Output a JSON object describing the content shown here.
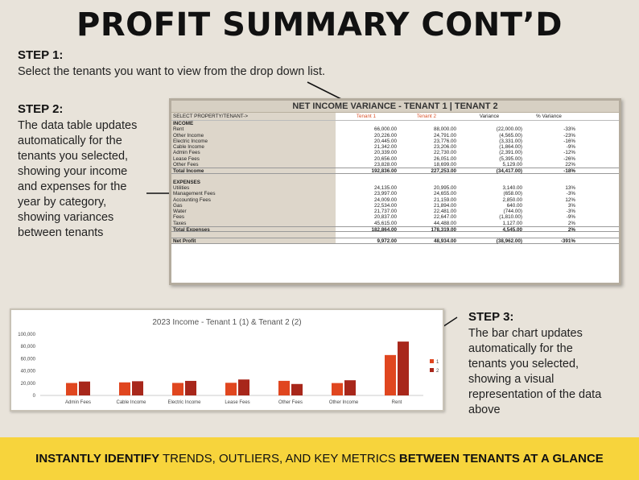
{
  "title": "PROFIT SUMMARY CONT’D",
  "step1": {
    "heading": "STEP 1:",
    "text": "Select the tenants you want to view from the drop down list."
  },
  "step2": {
    "heading": "STEP 2:",
    "lines": [
      "The data table updates",
      "automatically for the",
      "tenants you selected,",
      "showing your income",
      "and expenses for the",
      "year by category,",
      "showing variances",
      "between tenants"
    ]
  },
  "step3": {
    "heading": "STEP 3:",
    "lines": [
      "The bar chart updates",
      "automatically for the",
      "tenants you selected,",
      "showing a visual",
      "representation of the data",
      "above"
    ]
  },
  "table": {
    "title": "NET INCOME VARIANCE - TENANT 1 | TENANT 2",
    "header": [
      "SELECT PROPERTY/TENANT->",
      "Tenant 1",
      "Tenant 2",
      "Variance",
      "% Variance"
    ],
    "rows": [
      {
        "type": "section",
        "cells": [
          "INCOME",
          "",
          "",
          "",
          ""
        ]
      },
      {
        "type": "data",
        "cells": [
          "Rent",
          "66,000.00",
          "88,000.00",
          "(22,000.00)",
          "-33%"
        ]
      },
      {
        "type": "data",
        "cells": [
          "Other Income",
          "20,226.00",
          "24,791.00",
          "(4,565.00)",
          "-23%"
        ]
      },
      {
        "type": "data",
        "cells": [
          "Electric Income",
          "20,445.00",
          "23,776.00",
          "(3,331.00)",
          "-16%"
        ]
      },
      {
        "type": "data",
        "cells": [
          "Cable Income",
          "21,342.00",
          "23,206.00",
          "(1,864.00)",
          "-9%"
        ]
      },
      {
        "type": "data",
        "cells": [
          "Admin Fees",
          "20,339.00",
          "22,730.00",
          "(2,391.00)",
          "-12%"
        ]
      },
      {
        "type": "data",
        "cells": [
          "Lease Fees",
          "20,656.00",
          "26,051.00",
          "(5,395.00)",
          "-26%"
        ]
      },
      {
        "type": "data",
        "cells": [
          "Other Fees",
          "23,828.00",
          "18,699.00",
          "5,129.00",
          "22%"
        ]
      },
      {
        "type": "total",
        "cells": [
          "Total Income",
          "192,836.00",
          "227,253.00",
          "(34,417.00)",
          "-18%"
        ]
      },
      {
        "type": "gap",
        "cells": [
          "",
          "",
          "",
          "",
          ""
        ]
      },
      {
        "type": "section",
        "cells": [
          "EXPENSES",
          "",
          "",
          "",
          ""
        ]
      },
      {
        "type": "data",
        "cells": [
          "Utilities",
          "24,135.00",
          "20,995.00",
          "3,140.00",
          "13%"
        ]
      },
      {
        "type": "data",
        "cells": [
          "Management Fees",
          "23,997.00",
          "24,655.00",
          "(658.00)",
          "-3%"
        ]
      },
      {
        "type": "data",
        "cells": [
          "Accounting Fees",
          "24,009.00",
          "21,159.00",
          "2,850.00",
          "12%"
        ]
      },
      {
        "type": "data",
        "cells": [
          "Gas",
          "22,534.00",
          "21,894.00",
          "640.00",
          "3%"
        ]
      },
      {
        "type": "data",
        "cells": [
          "Water",
          "21,737.00",
          "22,481.00",
          "(744.00)",
          "-3%"
        ]
      },
      {
        "type": "data",
        "cells": [
          "Fees",
          "20,837.00",
          "22,647.00",
          "(1,810.00)",
          "-9%"
        ]
      },
      {
        "type": "data",
        "cells": [
          "Taxes",
          "45,615.00",
          "44,488.00",
          "1,127.00",
          "2%"
        ]
      },
      {
        "type": "total",
        "cells": [
          "Total Expenses",
          "182,864.00",
          "178,319.00",
          "4,545.00",
          "2%"
        ]
      },
      {
        "type": "gap",
        "cells": [
          "",
          "",
          "",
          "",
          ""
        ]
      },
      {
        "type": "total",
        "cells": [
          "Net Profit",
          "9,972.00",
          "48,934.00",
          "(38,962.00)",
          "-391%"
        ]
      }
    ]
  },
  "chart_data": {
    "type": "bar",
    "title": "2023 Income - Tenant 1 (1) & Tenant 2 (2)",
    "categories": [
      "Admin Fees",
      "Cable Income",
      "Electric Income",
      "Lease Fees",
      "Other Fees",
      "Other Income",
      "Rent"
    ],
    "series": [
      {
        "name": "1",
        "values": [
          20339,
          21342,
          20445,
          20656,
          23828,
          20226,
          66000
        ]
      },
      {
        "name": "2",
        "values": [
          22730,
          23206,
          23776,
          26051,
          18699,
          24791,
          88000
        ]
      }
    ],
    "yticks": [
      "100,000",
      "80,000",
      "60,000",
      "40,000",
      "20,000",
      "0"
    ],
    "ylim": [
      0,
      100000
    ],
    "legend": "right",
    "colors": [
      "#e0461f",
      "#a8271b"
    ]
  },
  "banner": {
    "b1": "INSTANTLY IDENTIFY",
    "t1": " TRENDS, OUTLIERS, AND KEY METRICS ",
    "b2": "BETWEEN TENANTS AT A GLANCE"
  }
}
